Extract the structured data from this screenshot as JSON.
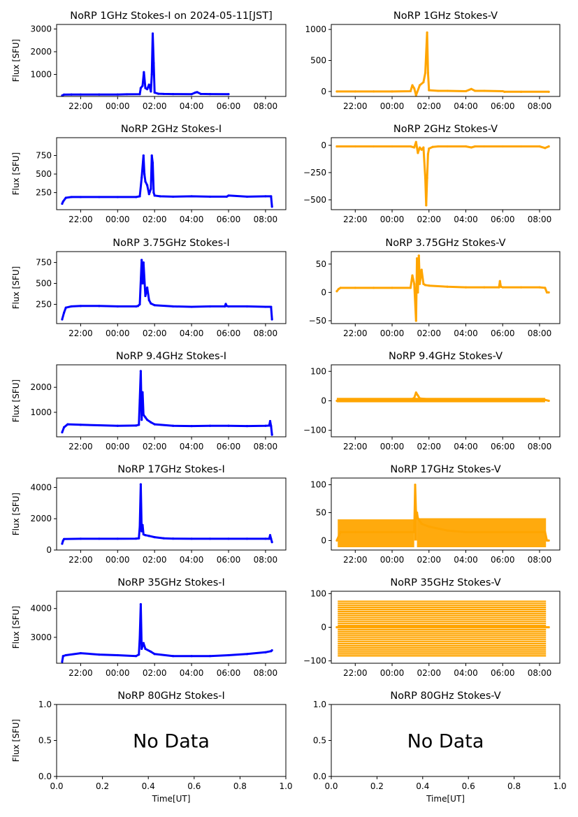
{
  "chart_data": [
    {
      "id": "1GHz-I",
      "type": "scatter",
      "title": "NoRP 1GHz Stokes-I on 2024-05-11[JST]",
      "ylabel": "Flux [SFU]",
      "xlabel": "",
      "color": "#0000ff",
      "xticks": [
        "22:00",
        "00:00",
        "02:00",
        "04:00",
        "06:00",
        "08:00"
      ],
      "xlim": [
        20.7,
        33.1
      ],
      "ylim": [
        30,
        3200
      ],
      "yticks": [
        1000,
        2000,
        3000
      ],
      "ytick_labels": [
        "1000",
        "2000",
        "3000"
      ],
      "series": [
        {
          "name": "Stokes-I",
          "x": [
            21.0,
            21.1,
            21.5,
            22.0,
            23.0,
            24.0,
            24.5,
            25.2,
            25.25,
            25.35,
            25.42,
            25.5,
            25.6,
            25.7,
            25.8,
            25.85,
            25.9,
            25.95,
            26.0,
            26.2,
            26.5,
            27.0,
            28.0,
            28.2,
            28.3,
            28.5,
            29.0,
            30.0
          ],
          "y": [
            70,
            110,
            115,
            115,
            115,
            115,
            125,
            130,
            400,
            500,
            1100,
            400,
            350,
            550,
            250,
            1000,
            2800,
            1500,
            200,
            150,
            140,
            135,
            130,
            200,
            220,
            140,
            135,
            130
          ]
        }
      ]
    },
    {
      "id": "1GHz-V",
      "type": "scatter",
      "title": "NoRP 1GHz Stokes-V",
      "ylabel": "",
      "xlabel": "",
      "color": "#ffa500",
      "xticks": [
        "22:00",
        "00:00",
        "02:00",
        "04:00",
        "06:00",
        "08:00"
      ],
      "xlim": [
        20.7,
        33.1
      ],
      "ylim": [
        -80,
        1080
      ],
      "yticks": [
        0,
        500,
        1000
      ],
      "ytick_labels": [
        "0",
        "500",
        "1000"
      ],
      "series": [
        {
          "name": "Stokes-V",
          "x": [
            21.0,
            22.0,
            23.0,
            24.0,
            25.0,
            25.1,
            25.2,
            25.3,
            25.5,
            25.7,
            25.8,
            25.9,
            25.95,
            26.0,
            26.5,
            27.0,
            28.0,
            28.3,
            28.5,
            29.0,
            30.0,
            30.1,
            31.0,
            32.5
          ],
          "y": [
            0,
            0,
            0,
            0,
            5,
            100,
            50,
            -60,
            100,
            150,
            300,
            950,
            300,
            20,
            10,
            10,
            5,
            40,
            10,
            10,
            5,
            -5,
            -5,
            -5
          ]
        }
      ]
    },
    {
      "id": "2GHz-I",
      "type": "scatter",
      "title": "NoRP 2GHz Stokes-I",
      "ylabel": "Flux [SFU]",
      "xlabel": "",
      "color": "#0000ff",
      "xticks": [
        "22:00",
        "00:00",
        "02:00",
        "04:00",
        "06:00",
        "08:00"
      ],
      "xlim": [
        20.7,
        33.1
      ],
      "ylim": [
        20,
        990
      ],
      "yticks": [
        250,
        500,
        750
      ],
      "ytick_labels": [
        "250",
        "500",
        "750"
      ],
      "series": [
        {
          "name": "Stokes-I",
          "x": [
            21.0,
            21.05,
            21.2,
            21.5,
            22.0,
            23.0,
            24.0,
            25.0,
            25.2,
            25.3,
            25.4,
            25.45,
            25.5,
            25.6,
            25.7,
            25.8,
            25.85,
            25.9,
            25.95,
            26.0,
            26.3,
            27.0,
            28.0,
            29.0,
            29.9,
            30.0,
            31.0,
            32.0,
            32.3,
            32.35
          ],
          "y": [
            100,
            130,
            180,
            190,
            190,
            190,
            190,
            190,
            200,
            450,
            750,
            500,
            400,
            350,
            230,
            300,
            750,
            650,
            250,
            210,
            200,
            195,
            200,
            195,
            195,
            210,
            195,
            200,
            200,
            60
          ]
        }
      ]
    },
    {
      "id": "2GHz-V",
      "type": "scatter",
      "title": "NoRP 2GHz Stokes-V",
      "ylabel": "",
      "xlabel": "",
      "color": "#ffa500",
      "xticks": [
        "22:00",
        "00:00",
        "02:00",
        "04:00",
        "06:00",
        "08:00"
      ],
      "xlim": [
        20.7,
        33.1
      ],
      "ylim": [
        -590,
        70
      ],
      "yticks": [
        -500,
        -250,
        0
      ],
      "ytick_labels": [
        "−500",
        "−250",
        "0"
      ],
      "series": [
        {
          "name": "Stokes-V",
          "x": [
            21.0,
            22.0,
            23.0,
            24.0,
            25.0,
            25.2,
            25.3,
            25.4,
            25.5,
            25.6,
            25.7,
            25.8,
            25.85,
            25.9,
            25.95,
            26.0,
            26.2,
            26.5,
            27.0,
            28.0,
            28.3,
            28.5,
            29.0,
            30.0,
            31.0,
            32.0,
            32.3,
            32.5
          ],
          "y": [
            -10,
            -10,
            -10,
            -10,
            -10,
            -20,
            30,
            -70,
            -20,
            -40,
            -20,
            -300,
            -550,
            -300,
            -80,
            -30,
            -15,
            -10,
            -10,
            -10,
            -20,
            -10,
            -10,
            -10,
            -10,
            -10,
            -25,
            -10
          ]
        }
      ]
    },
    {
      "id": "3.75GHz-I",
      "type": "scatter",
      "title": "NoRP 3.75GHz Stokes-I",
      "ylabel": "Flux [SFU]",
      "xlabel": "",
      "color": "#0000ff",
      "xticks": [
        "22:00",
        "00:00",
        "02:00",
        "04:00",
        "06:00",
        "08:00"
      ],
      "xlim": [
        20.7,
        33.1
      ],
      "ylim": [
        20,
        880
      ],
      "yticks": [
        250,
        500,
        750
      ],
      "ytick_labels": [
        "250",
        "500",
        "750"
      ],
      "series": [
        {
          "name": "Stokes-I",
          "x": [
            21.0,
            21.1,
            21.2,
            21.5,
            22.0,
            23.0,
            24.0,
            25.0,
            25.1,
            25.2,
            25.3,
            25.35,
            25.4,
            25.5,
            25.6,
            25.7,
            25.8,
            26.0,
            27.0,
            28.0,
            29.0,
            29.8,
            29.85,
            29.9,
            30.0,
            31.0,
            32.0,
            32.3,
            32.35
          ],
          "y": [
            70,
            150,
            210,
            225,
            230,
            230,
            225,
            225,
            230,
            250,
            780,
            500,
            750,
            350,
            450,
            300,
            260,
            240,
            225,
            220,
            225,
            225,
            255,
            230,
            225,
            225,
            220,
            220,
            70
          ]
        }
      ]
    },
    {
      "id": "3.75GHz-V",
      "type": "scatter",
      "title": "NoRP 3.75GHz Stokes-V",
      "ylabel": "",
      "xlabel": "",
      "color": "#ffa500",
      "xticks": [
        "22:00",
        "00:00",
        "02:00",
        "04:00",
        "06:00",
        "08:00"
      ],
      "xlim": [
        20.7,
        33.1
      ],
      "ylim": [
        -55,
        72
      ],
      "yticks": [
        -50,
        0,
        50
      ],
      "ytick_labels": [
        "−50",
        "0",
        "50"
      ],
      "series": [
        {
          "name": "Stokes-V",
          "x": [
            21.0,
            21.1,
            21.2,
            22.0,
            23.0,
            24.0,
            25.0,
            25.1,
            25.2,
            25.3,
            25.35,
            25.4,
            25.45,
            25.5,
            25.6,
            25.7,
            25.8,
            26.0,
            27.0,
            28.0,
            29.0,
            29.8,
            29.85,
            29.9,
            30.0,
            31.0,
            32.0,
            32.3,
            32.4,
            32.5
          ],
          "y": [
            2,
            6,
            8,
            8,
            8,
            8,
            8,
            30,
            15,
            -50,
            60,
            0,
            65,
            15,
            40,
            15,
            13,
            12,
            10,
            9,
            9,
            9,
            20,
            10,
            9,
            9,
            9,
            8,
            0,
            0
          ]
        }
      ]
    },
    {
      "id": "9.4GHz-I",
      "type": "scatter",
      "title": "NoRP 9.4GHz Stokes-I",
      "ylabel": "Flux [SFU]",
      "xlabel": "",
      "color": "#0000ff",
      "xticks": [
        "22:00",
        "00:00",
        "02:00",
        "04:00",
        "06:00",
        "08:00"
      ],
      "xlim": [
        20.7,
        33.1
      ],
      "ylim": [
        20,
        2900
      ],
      "yticks": [
        1000,
        2000
      ],
      "ytick_labels": [
        "1000",
        "2000"
      ],
      "series": [
        {
          "name": "Stokes-I",
          "x": [
            21.0,
            21.1,
            21.3,
            22.0,
            23.0,
            24.0,
            25.0,
            25.15,
            25.2,
            25.25,
            25.3,
            25.35,
            25.4,
            25.5,
            25.6,
            25.8,
            26.0,
            27.0,
            28.0,
            29.0,
            30.0,
            31.0,
            32.0,
            32.2,
            32.25,
            32.3,
            32.35
          ],
          "y": [
            200,
            400,
            520,
            500,
            480,
            460,
            470,
            500,
            1500,
            2650,
            700,
            1800,
            900,
            800,
            700,
            600,
            520,
            460,
            450,
            460,
            460,
            450,
            460,
            470,
            650,
            450,
            100
          ]
        }
      ]
    },
    {
      "id": "9.4GHz-V",
      "type": "scatter",
      "title": "NoRP 9.4GHz Stokes-V",
      "ylabel": "",
      "xlabel": "",
      "color": "#ffa500",
      "xticks": [
        "22:00",
        "00:00",
        "02:00",
        "04:00",
        "06:00",
        "08:00"
      ],
      "xlim": [
        20.7,
        33.1
      ],
      "ylim": [
        -122,
        122
      ],
      "yticks": [
        -100,
        0,
        100
      ],
      "ytick_labels": [
        "−100",
        "0",
        "100"
      ],
      "series": [
        {
          "name": "Stokes-V",
          "x": [
            21.0,
            22.0,
            23.0,
            24.0,
            25.0,
            25.2,
            25.3,
            25.4,
            25.5,
            26.0,
            27.0,
            28.0,
            29.0,
            30.0,
            31.0,
            32.0,
            32.3,
            32.5
          ],
          "y": [
            0,
            3,
            3,
            3,
            3,
            10,
            28,
            18,
            8,
            5,
            3,
            3,
            3,
            3,
            3,
            3,
            3,
            0
          ]
        }
      ]
    },
    {
      "id": "17GHz-I",
      "type": "scatter",
      "title": "NoRP 17GHz Stokes-I",
      "ylabel": "Flux [SFU]",
      "xlabel": "",
      "color": "#0000ff",
      "xticks": [
        "22:00",
        "00:00",
        "02:00",
        "04:00",
        "06:00",
        "08:00"
      ],
      "xlim": [
        20.7,
        33.1
      ],
      "ylim": [
        0,
        4600
      ],
      "yticks": [
        0,
        2000,
        4000
      ],
      "ytick_labels": [
        "0",
        "2000",
        "4000"
      ],
      "series": [
        {
          "name": "Stokes-I",
          "x": [
            21.0,
            21.05,
            21.1,
            22.0,
            23.0,
            24.0,
            25.0,
            25.15,
            25.2,
            25.25,
            25.3,
            25.35,
            25.4,
            25.5,
            25.7,
            26.0,
            26.5,
            27.0,
            28.0,
            29.0,
            30.0,
            31.0,
            32.0,
            32.2,
            32.25,
            32.3,
            32.35
          ],
          "y": [
            400,
            600,
            700,
            720,
            720,
            720,
            730,
            750,
            1500,
            4200,
            1200,
            1600,
            1000,
            950,
            900,
            820,
            750,
            730,
            720,
            720,
            720,
            720,
            720,
            720,
            950,
            720,
            500
          ]
        }
      ]
    },
    {
      "id": "17GHz-V",
      "type": "scatter",
      "title": "NoRP 17GHz Stokes-V",
      "ylabel": "",
      "xlabel": "",
      "color": "#ffa500",
      "xticks": [
        "22:00",
        "00:00",
        "02:00",
        "04:00",
        "06:00",
        "08:00"
      ],
      "xlim": [
        20.7,
        33.1
      ],
      "ylim": [
        -17,
        112
      ],
      "yticks": [
        0,
        50,
        100
      ],
      "ytick_labels": [
        "0",
        "50",
        "100"
      ],
      "series": [
        {
          "name": "Stokes-V",
          "x": [
            21.0,
            21.2,
            22.0,
            23.0,
            24.0,
            25.0,
            25.2,
            25.25,
            25.3,
            25.35,
            25.4,
            25.6,
            26.0,
            27.0,
            28.0,
            29.0,
            30.0,
            31.0,
            32.0,
            32.3,
            32.4,
            32.5
          ],
          "y": [
            0,
            15,
            15,
            15,
            15,
            15,
            15,
            100,
            45,
            50,
            40,
            30,
            25,
            18,
            15,
            15,
            15,
            15,
            15,
            15,
            0,
            0
          ]
        }
      ],
      "note": "Wide noise band roughly -12 to 40"
    },
    {
      "id": "35GHz-I",
      "type": "scatter",
      "title": "NoRP 35GHz Stokes-I",
      "ylabel": "Flux [SFU]",
      "xlabel": "",
      "color": "#0000ff",
      "xticks": [
        "22:00",
        "00:00",
        "02:00",
        "04:00",
        "06:00",
        "08:00"
      ],
      "xlim": [
        20.7,
        33.1
      ],
      "ylim": [
        2100,
        4600
      ],
      "yticks": [
        3000,
        4000
      ],
      "ytick_labels": [
        "3000",
        "4000"
      ],
      "series": [
        {
          "name": "Stokes-I",
          "x": [
            21.0,
            21.05,
            21.2,
            22.0,
            23.0,
            24.0,
            25.0,
            25.15,
            25.2,
            25.25,
            25.3,
            25.4,
            25.5,
            25.8,
            26.0,
            27.0,
            28.0,
            29.0,
            30.0,
            31.0,
            32.0,
            32.3,
            32.35
          ],
          "y": [
            2150,
            2350,
            2380,
            2450,
            2400,
            2380,
            2350,
            2400,
            3000,
            4150,
            2600,
            2800,
            2600,
            2500,
            2420,
            2350,
            2350,
            2350,
            2380,
            2420,
            2480,
            2520,
            2550
          ]
        }
      ]
    },
    {
      "id": "35GHz-V",
      "type": "scatter",
      "title": "NoRP 35GHz Stokes-V",
      "ylabel": "",
      "xlabel": "",
      "color": "#ffa500",
      "xticks": [
        "22:00",
        "00:00",
        "02:00",
        "04:00",
        "06:00",
        "08:00"
      ],
      "xlim": [
        20.7,
        33.1
      ],
      "ylim": [
        -107,
        107
      ],
      "yticks": [
        -100,
        0,
        100
      ],
      "ytick_labels": [
        "−100",
        "0",
        "100"
      ],
      "series": [
        {
          "name": "Stokes-V",
          "x": [
            21.0,
            32.5
          ],
          "y": [
            0,
            0
          ]
        }
      ],
      "note": "Quantized horizontal bands from about -85 to 80 spanning 21:00-08:20"
    },
    {
      "id": "80GHz-I",
      "type": "scatter",
      "title": "NoRP 80GHz Stokes-I",
      "ylabel": "Flux [SFU]",
      "xlabel": "Time[UT]",
      "color": "#0000ff",
      "xticks": [
        "0.0",
        "0.2",
        "0.4",
        "0.6",
        "0.8",
        "1.0"
      ],
      "xlim": [
        0,
        1
      ],
      "ylim": [
        0,
        1
      ],
      "yticks": [
        0,
        0.5,
        1.0
      ],
      "ytick_labels": [
        "0.0",
        "0.5",
        "1.0"
      ],
      "series": [],
      "annotation": "No Data"
    },
    {
      "id": "80GHz-V",
      "type": "scatter",
      "title": "NoRP 80GHz Stokes-V",
      "ylabel": "",
      "xlabel": "Time[UT]",
      "color": "#ffa500",
      "xticks": [
        "0.0",
        "0.2",
        "0.4",
        "0.6",
        "0.8",
        "1.0"
      ],
      "xlim": [
        0,
        1
      ],
      "ylim": [
        0,
        1
      ],
      "yticks": [
        0,
        0.5,
        1.0
      ],
      "ytick_labels": [
        "0.0",
        "0.5",
        "1.0"
      ],
      "series": [],
      "annotation": "No Data"
    }
  ]
}
